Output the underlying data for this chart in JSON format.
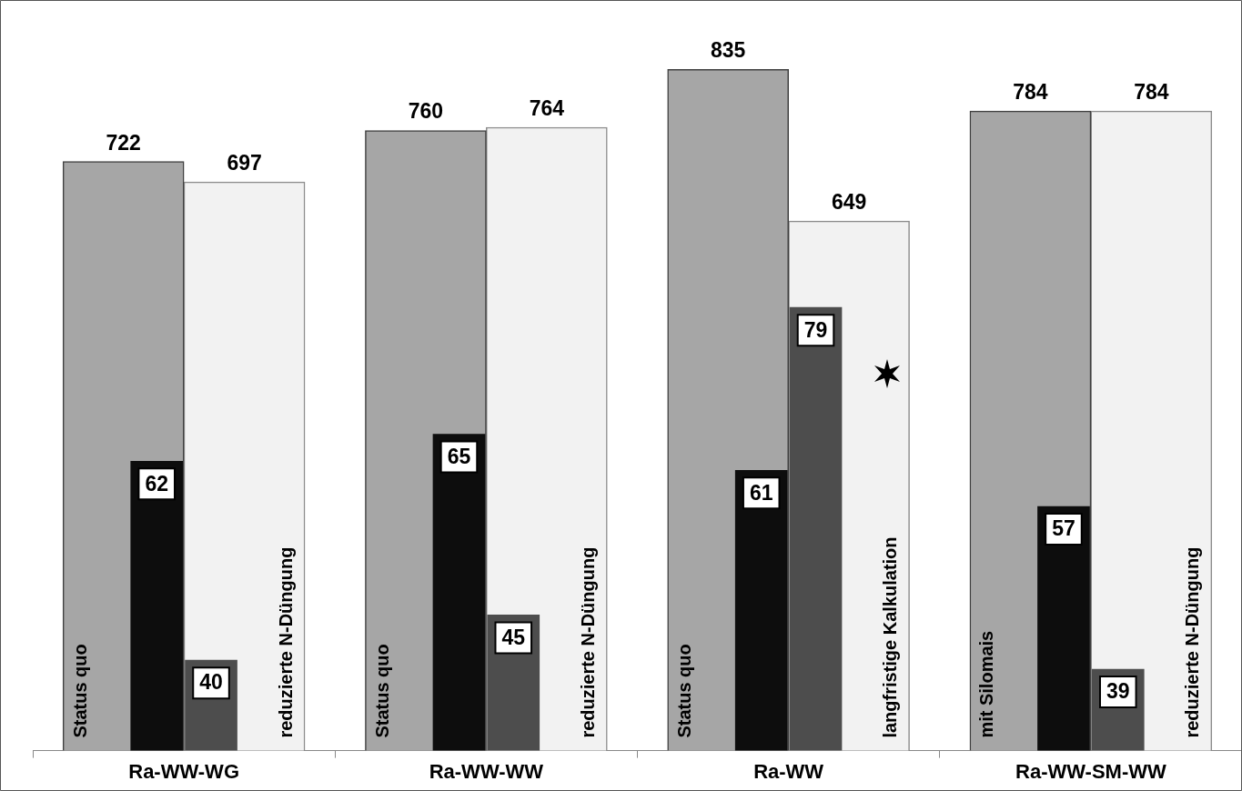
{
  "chart_data": {
    "type": "bar",
    "categories": [
      "Ra-WW-WG",
      "Ra-WW-WW",
      "Ra-WW",
      "Ra-WW-SM-WW"
    ],
    "series": [
      {
        "color": "#a6a6a6",
        "values": [
          722,
          760,
          835,
          784
        ]
      },
      {
        "color": "#f2f2f2",
        "values": [
          697,
          764,
          649,
          784
        ]
      },
      {
        "color": "#0d0d0d",
        "values": [
          62,
          65,
          61,
          57
        ],
        "axis": "y2"
      },
      {
        "color": "#4d4d4d",
        "values": [
          40,
          45,
          79,
          39
        ],
        "axis": "y2"
      }
    ],
    "ylim": [
      0,
      920
    ],
    "y2lim": [
      30,
      113
    ],
    "data_labels": true,
    "grid": false,
    "legend": false,
    "annotations": [
      "Status quo",
      "reduzierte N-Düngung",
      "Status quo",
      "reduzierte N-Düngung",
      "Status quo",
      "langfristige Kalkulation",
      "mit Silomais",
      "reduzierte N-Düngung"
    ]
  }
}
